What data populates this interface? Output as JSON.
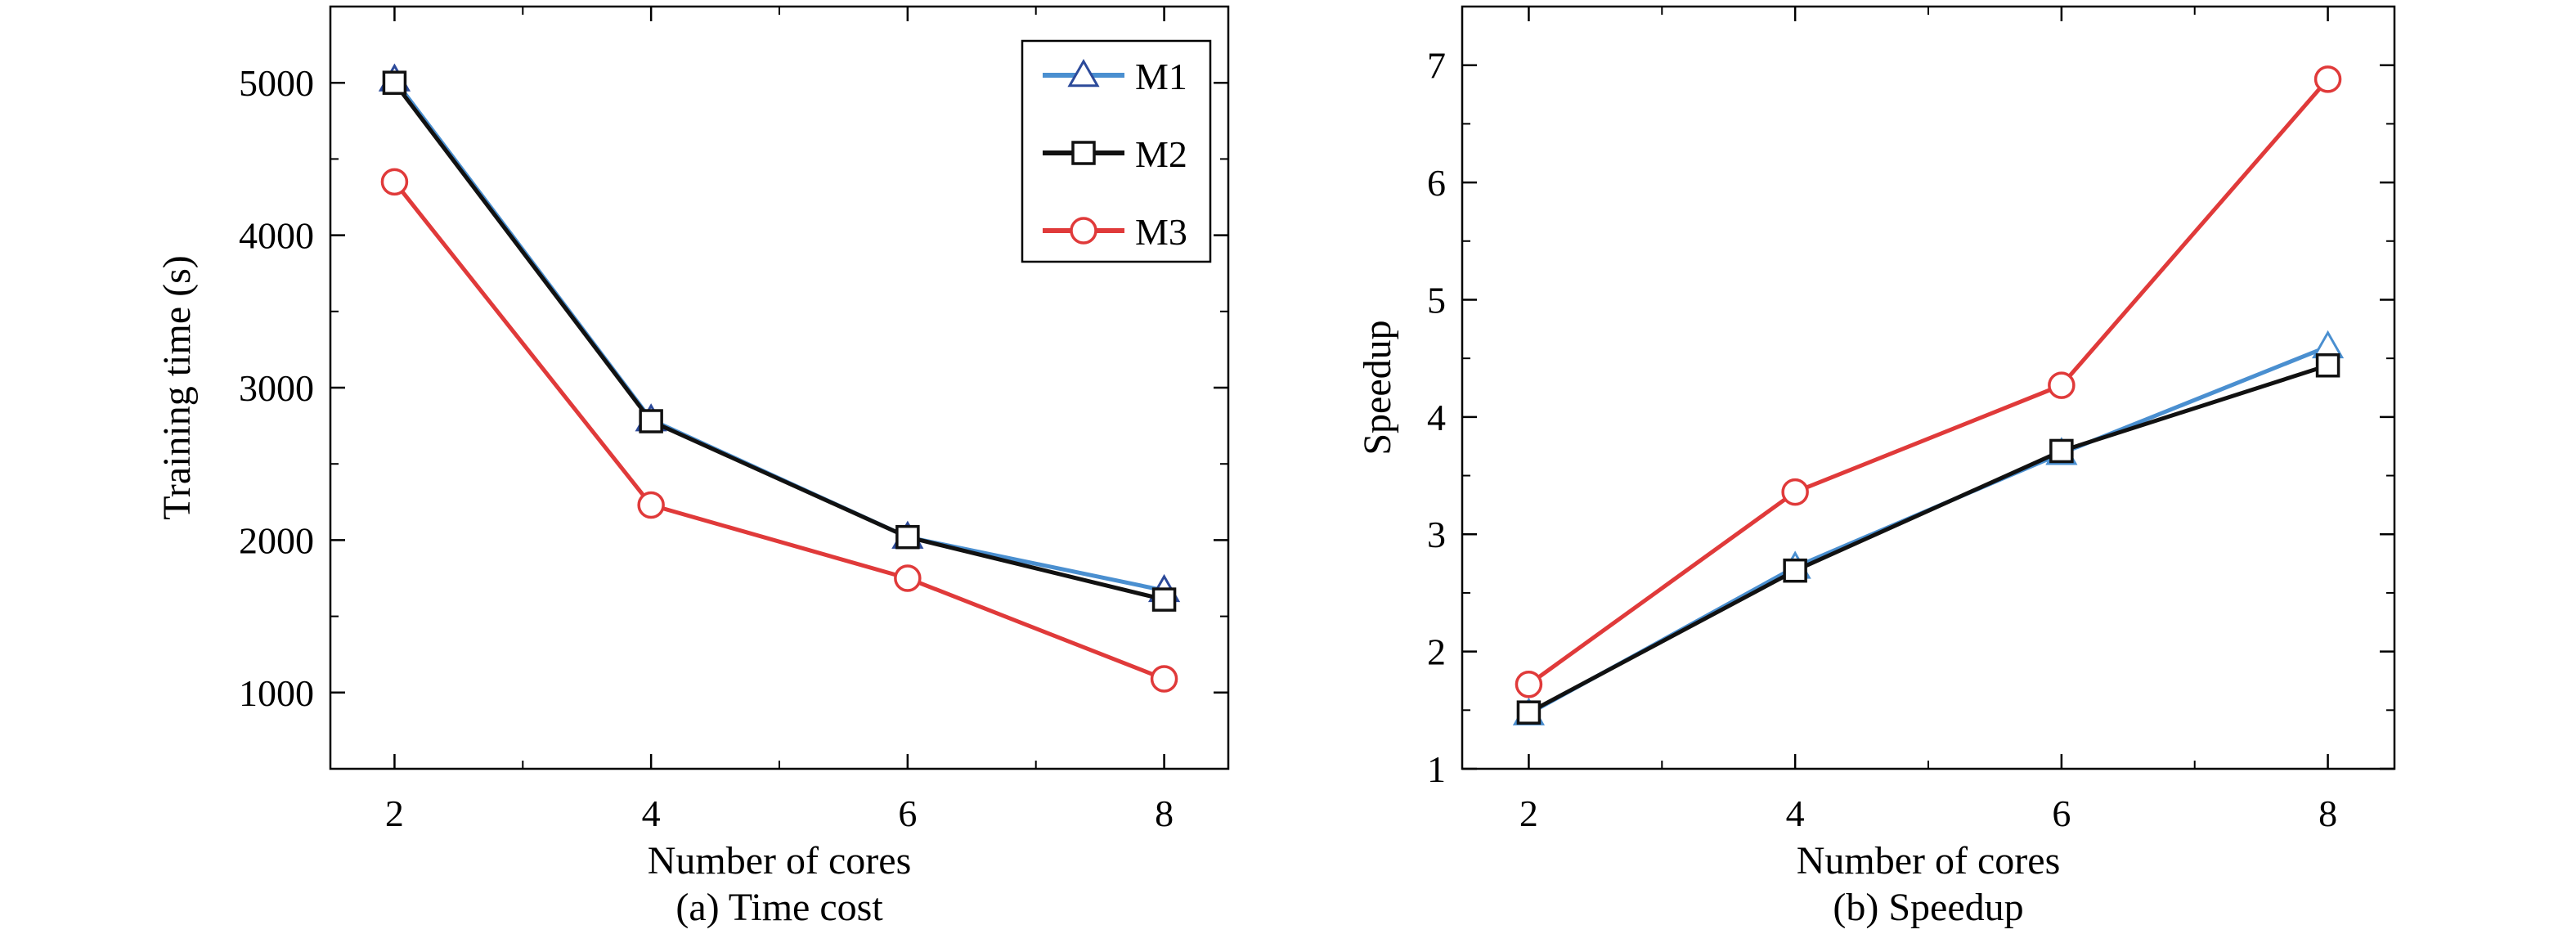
{
  "chart_data": [
    {
      "type": "line",
      "xlabel": "Number of cores",
      "ylabel": "Training time (s)",
      "caption": "(a) Time cost",
      "x": [
        2,
        4,
        6,
        8
      ],
      "xlim": [
        1.5,
        8.5
      ],
      "ylim": [
        500,
        5500
      ],
      "xticks": [
        2,
        4,
        6,
        8
      ],
      "yticks": [
        1000,
        2000,
        3000,
        4000,
        5000
      ],
      "legend_position": "top-right",
      "grid": false,
      "series": [
        {
          "name": "M1",
          "marker": "triangle",
          "line_color": "#4a8fd0",
          "marker_color": "#2c4a9a",
          "values": [
            5020,
            2790,
            2020,
            1670
          ]
        },
        {
          "name": "M2",
          "marker": "square",
          "line_color": "#111111",
          "marker_color": "#111111",
          "values": [
            5000,
            2780,
            2020,
            1610
          ]
        },
        {
          "name": "M3",
          "marker": "circle",
          "line_color": "#e03a3a",
          "marker_color": "#e03a3a",
          "values": [
            4350,
            2230,
            1750,
            1090
          ]
        }
      ]
    },
    {
      "type": "line",
      "xlabel": "Number of cores",
      "ylabel": "Speedup",
      "caption": "(b) Speedup",
      "x": [
        2,
        4,
        6,
        8
      ],
      "xlim": [
        1.5,
        8.5
      ],
      "ylim": [
        1,
        7.5
      ],
      "xticks": [
        2,
        4,
        6,
        8
      ],
      "yticks": [
        1,
        2,
        3,
        4,
        5,
        6,
        7
      ],
      "grid": false,
      "series": [
        {
          "name": "M1",
          "marker": "triangle",
          "line_color": "#4a8fd0",
          "marker_color": "#4a8fd0",
          "values": [
            1.47,
            2.72,
            3.69,
            4.6
          ]
        },
        {
          "name": "M2",
          "marker": "square",
          "line_color": "#111111",
          "marker_color": "#111111",
          "values": [
            1.48,
            2.69,
            3.71,
            4.44
          ]
        },
        {
          "name": "M3",
          "marker": "circle",
          "line_color": "#e03a3a",
          "marker_color": "#e03a3a",
          "values": [
            1.72,
            3.36,
            4.27,
            6.88
          ]
        }
      ]
    }
  ]
}
